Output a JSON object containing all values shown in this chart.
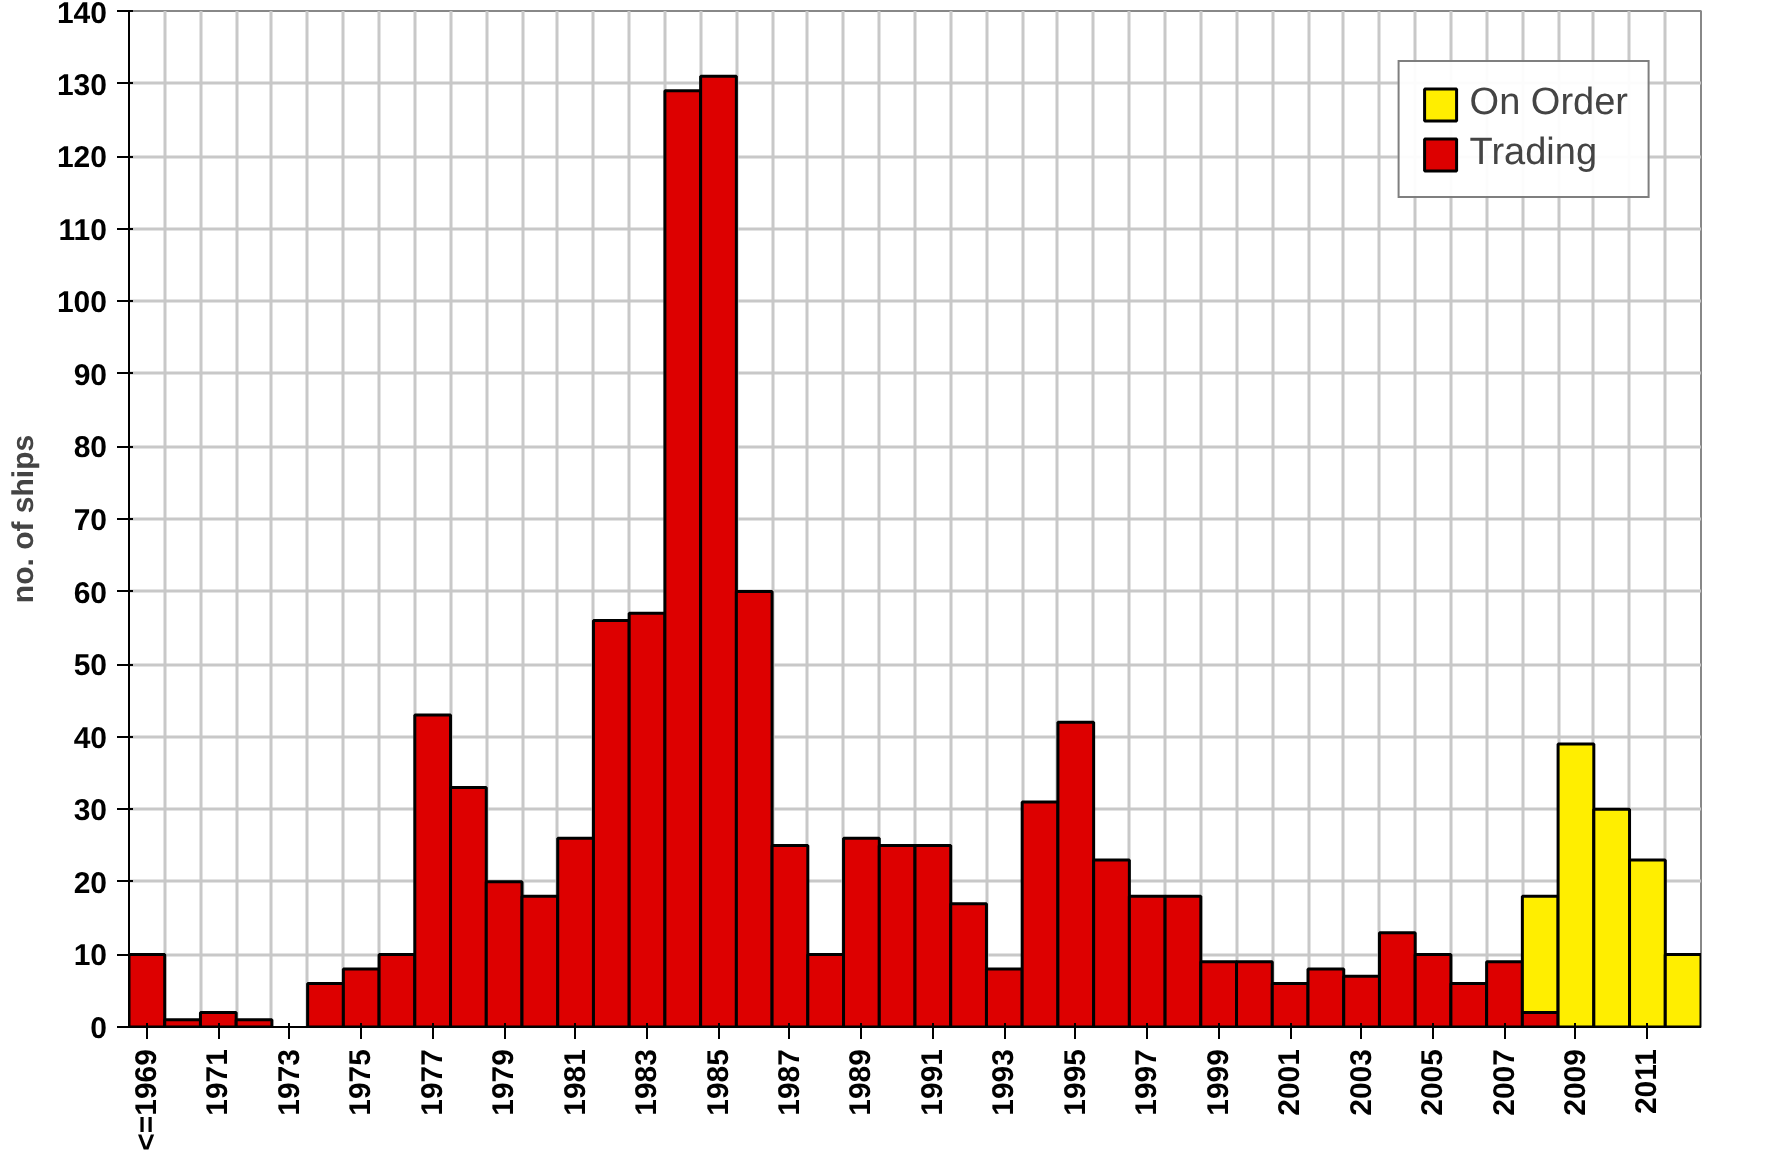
{
  "chart_data": {
    "type": "bar",
    "stacked": true,
    "ylabel": "no. of ships",
    "categories": [
      "<=1969",
      null,
      "1971",
      null,
      "1973",
      null,
      "1975",
      null,
      "1977",
      null,
      "1979",
      null,
      "1981",
      null,
      "1983",
      null,
      "1985",
      null,
      "1987",
      null,
      "1989",
      null,
      "1991",
      null,
      "1993",
      null,
      "1995",
      null,
      "1997",
      null,
      "1999",
      null,
      "2001",
      null,
      "2003",
      null,
      "2005",
      null,
      "2007",
      null,
      "2009",
      null,
      "2011",
      null
    ],
    "series": [
      {
        "name": "Trading",
        "color": "#dd0000",
        "values": [
          10,
          1,
          2,
          1,
          0,
          6,
          8,
          10,
          43,
          33,
          20,
          18,
          26,
          56,
          57,
          129,
          131,
          60,
          25,
          10,
          26,
          25,
          25,
          17,
          8,
          31,
          42,
          23,
          18,
          18,
          9,
          9,
          6,
          8,
          7,
          13,
          10,
          6,
          9,
          2,
          0,
          0,
          0,
          0
        ]
      },
      {
        "name": "On Order",
        "color": "#ffee00",
        "values": [
          0,
          0,
          0,
          0,
          0,
          0,
          0,
          0,
          0,
          0,
          0,
          0,
          0,
          0,
          0,
          0,
          0,
          0,
          0,
          0,
          0,
          0,
          0,
          0,
          0,
          0,
          0,
          0,
          0,
          0,
          0,
          0,
          0,
          0,
          0,
          0,
          0,
          0,
          0,
          16,
          39,
          30,
          23,
          10
        ]
      }
    ],
    "ylim": [
      0,
      140
    ],
    "yticks": [
      0,
      10,
      20,
      30,
      40,
      50,
      60,
      70,
      80,
      90,
      100,
      110,
      120,
      130,
      140
    ],
    "grid": true,
    "legend": "top right"
  }
}
